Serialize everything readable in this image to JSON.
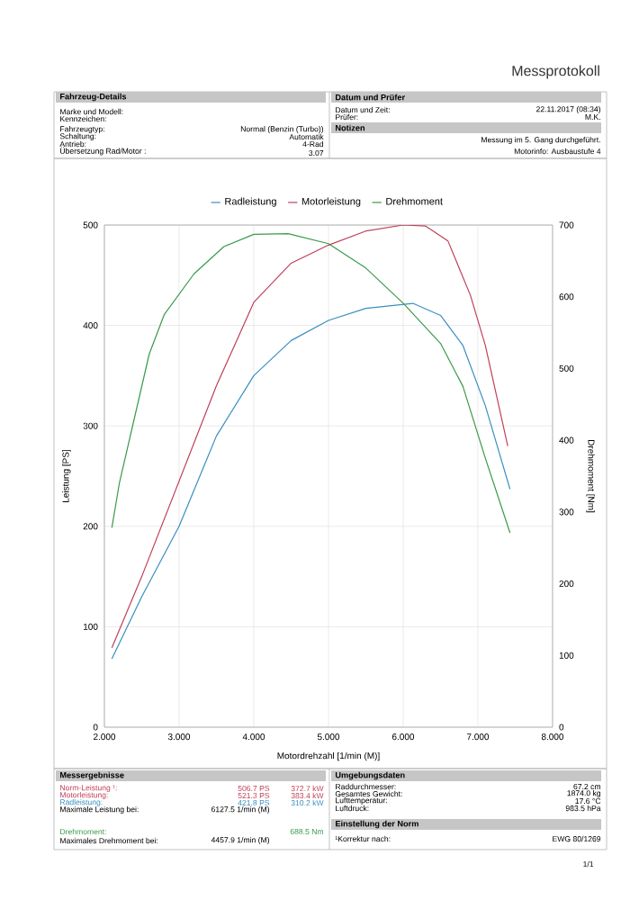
{
  "chart_data": {
    "type": "line",
    "title": "Messprotokoll",
    "xlabel": "Motordrehzahl [1/min (M)]",
    "ylabel": "Leistung [PS]",
    "y2label": "Drehmoment [Nm]",
    "xlim": [
      2,
      8
    ],
    "xticks": [
      {
        "value": 2,
        "label": "2.000"
      },
      {
        "value": 3,
        "label": "3.000"
      },
      {
        "value": 4,
        "label": "4.000"
      },
      {
        "value": 5,
        "label": "5.000"
      },
      {
        "value": 6,
        "label": "6.000"
      },
      {
        "value": 7,
        "label": "7.000"
      },
      {
        "value": 8,
        "label": "8.000"
      }
    ],
    "ylim": [
      0,
      500
    ],
    "yticks": [
      0,
      100,
      200,
      300,
      400,
      500
    ],
    "y2lim": [
      0,
      700
    ],
    "y2ticks": [
      0,
      100,
      200,
      300,
      400,
      500,
      600,
      700
    ],
    "grid": true,
    "legend": "top",
    "series": [
      {
        "name": "Radleistung",
        "color": "#3a8fc0",
        "x": [
          2.1,
          2.5,
          3.0,
          3.5,
          4.0,
          4.5,
          5.0,
          5.5,
          6.13,
          6.5,
          6.8,
          7.1,
          7.43
        ],
        "values": [
          68,
          130,
          200,
          290,
          350,
          385,
          405,
          417,
          422,
          410,
          380,
          320,
          237
        ]
      },
      {
        "name": "Motorleistung",
        "color": "#c0405a",
        "x": [
          2.1,
          2.5,
          3.0,
          3.5,
          4.0,
          4.5,
          5.0,
          5.5,
          6.0,
          6.3,
          6.6,
          6.9,
          7.1,
          7.4
        ],
        "values": [
          79,
          150,
          245,
          340,
          423,
          462,
          480,
          494,
          500,
          499,
          484,
          430,
          380,
          280
        ]
      },
      {
        "name": "Drehmoment",
        "color": "#3a9a4a",
        "axis": "y2",
        "x": [
          2.1,
          2.2,
          2.4,
          2.6,
          2.8,
          3.2,
          3.6,
          4.0,
          4.46,
          5.0,
          5.5,
          6.0,
          6.5,
          6.8,
          7.1,
          7.43
        ],
        "values": [
          278,
          340,
          430,
          520,
          575,
          632,
          670,
          687,
          688,
          674,
          640,
          591,
          535,
          475,
          375,
          271
        ]
      }
    ],
    "annotations": [
      "Fahrzeug-Details",
      "Marke und Modell:",
      "Kennzeichen:",
      "Fahrzeugtyp:",
      "Normal (Benzin (Turbo))",
      "Schaltung:",
      "Automatik",
      "Antrieb:",
      "4-Rad",
      "Übersetzung Rad/Motor :",
      "3.07",
      "Datum und Prüfer",
      "Datum und Zeit:",
      "22.11.2017 (08:34)",
      "Prüfer:",
      "M.K.",
      "Notizen",
      "Messung im 5. Gang durchgeführt.",
      "Motorinfo: Ausbaustufe 4",
      "Messergebnisse",
      "Norm-Leistung ¹:",
      "506.7 PS",
      "372.7 kW",
      "Motorleistung:",
      "521.3 PS",
      "383.4 kW",
      "Radleistung:",
      "421.8 PS",
      "310.2 kW",
      "Maximale Leistung bei:",
      "6127.5 1/min (M)",
      "Drehmoment:",
      "688.5 Nm",
      "Maximales Drehmoment bei:",
      "4457.9 1/min (M)",
      "Umgebungsdaten",
      "Raddurchmesser:",
      "67.2 cm",
      "Gesamtes Gewicht:",
      "1874.0 kg",
      "Lufttemperatur:",
      "17.6 °C",
      "Luftdruck:",
      "983.5 hPa",
      "Einstellung der Norm",
      "¹Korrektur nach:",
      "EWG 80/1269",
      "1/1"
    ]
  }
}
